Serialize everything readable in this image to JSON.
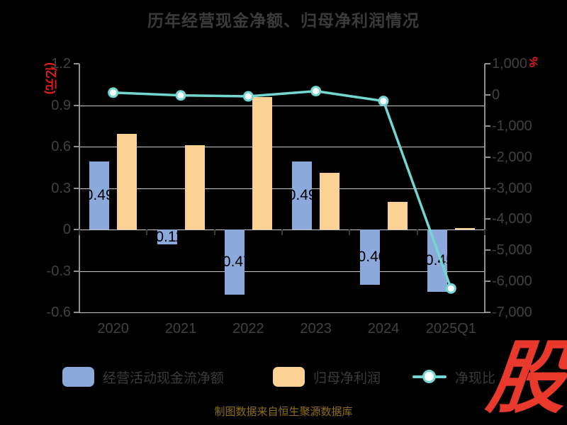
{
  "title": "历年经营现金净额、归母净利润情况",
  "footer": "制图数据来自恒生聚源数据库",
  "logo": "股",
  "colors": {
    "background": "#000000",
    "title_text": "#3b3b3b",
    "axis_text": "#414141",
    "gridline": "#c9c9c9",
    "axis_line": "#8f8f8f",
    "axis_unit_red": "#e61c1c",
    "bar_blue": "#8ca9db",
    "bar_orange": "#fbd293",
    "line_teal": "#74d6d0",
    "footer_gold": "#8f6f14",
    "logo_red": "#e8392c"
  },
  "chart_data": {
    "type": "bar",
    "subtype": "dual-axis bar + line combo",
    "categories": [
      "2020",
      "2021",
      "2022",
      "2023",
      "2024",
      "2025Q1"
    ],
    "series": [
      {
        "name": "经营活动现金流净额",
        "type": "bar",
        "axis": "left",
        "color": "#8ca9db",
        "values": [
          0.49,
          -0.11,
          -0.47,
          0.49,
          -0.4,
          -0.45
        ],
        "labels": [
          "0.49",
          "-0.11",
          "-0.47",
          "0.49",
          "-0.40",
          "-0.45"
        ]
      },
      {
        "name": "归母净利润",
        "type": "bar",
        "axis": "left",
        "color": "#fbd293",
        "values": [
          0.69,
          0.61,
          0.96,
          0.41,
          0.2,
          0.01
        ],
        "labels": []
      },
      {
        "name": "净现比",
        "type": "line",
        "axis": "right",
        "color": "#74d6d0",
        "marker": "white-circle",
        "values": [
          71,
          -18,
          -49,
          120,
          -200,
          -6230
        ],
        "labels": []
      }
    ],
    "left_axis": {
      "unit": "(亿元)",
      "min": -0.6,
      "max": 1.2,
      "ticks": [
        {
          "label": "1.2",
          "value": 1.2
        },
        {
          "label": "0.9",
          "value": 0.9
        },
        {
          "label": "0.6",
          "value": 0.6
        },
        {
          "label": "0.3",
          "value": 0.3
        },
        {
          "label": "0",
          "value": 0
        },
        {
          "label": "-0.3",
          "value": -0.3
        },
        {
          "label": "-0.6",
          "value": -0.6
        }
      ]
    },
    "right_axis": {
      "unit": "%",
      "min": -7000,
      "max": 1000,
      "ticks": [
        {
          "label": "1,000",
          "value": 1000
        },
        {
          "label": "0",
          "value": 0
        },
        {
          "label": "-1,000",
          "value": -1000
        },
        {
          "label": "-2,000",
          "value": -2000
        },
        {
          "label": "-3,000",
          "value": -3000
        },
        {
          "label": "-4,000",
          "value": -4000
        },
        {
          "label": "-5,000",
          "value": -5000
        },
        {
          "label": "-6,000",
          "value": -6000
        },
        {
          "label": "-7,000",
          "value": -7000
        }
      ]
    },
    "grid": true,
    "legend_position": "bottom"
  }
}
